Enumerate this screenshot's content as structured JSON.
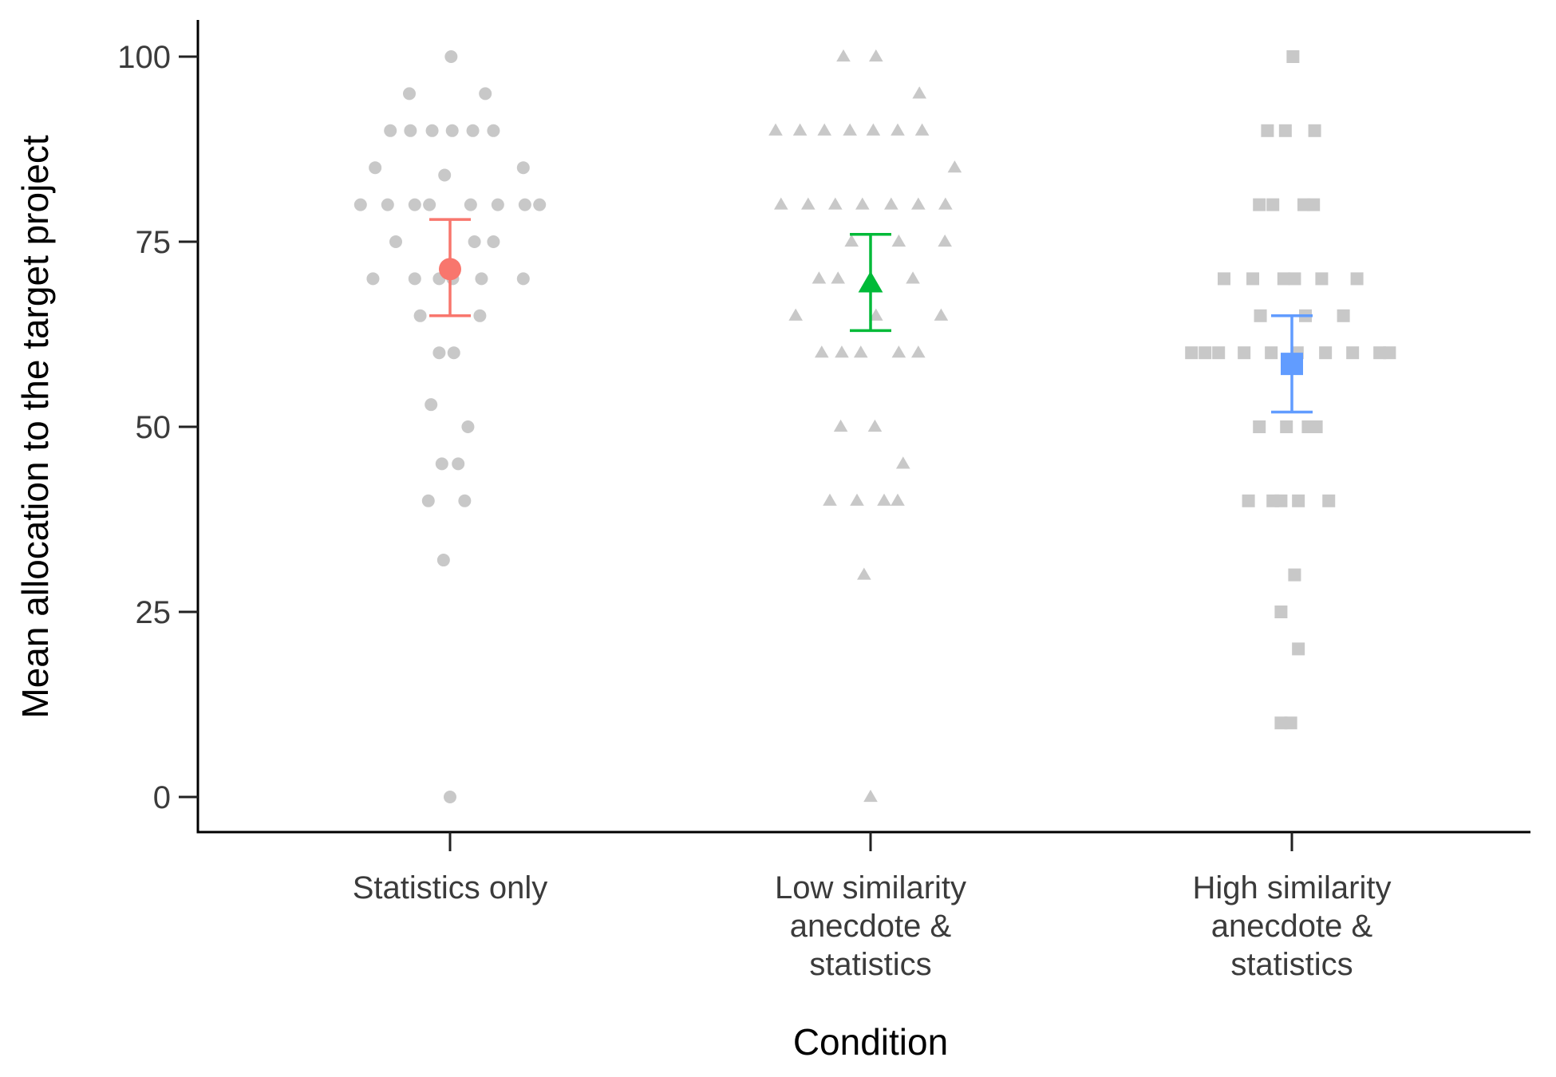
{
  "chart_data": {
    "type": "scatter",
    "title": "",
    "xlabel": "Condition",
    "ylabel": "Mean allocation to the target project",
    "ylim": [
      -5,
      105
    ],
    "yticks": [
      0,
      25,
      50,
      75,
      100
    ],
    "grid": false,
    "legend": "none",
    "categories": [
      [
        "Statistics only"
      ],
      [
        "Low similarity",
        "anecdote &",
        "statistics"
      ],
      [
        "High similarity",
        "anecdote &",
        "statistics"
      ]
    ],
    "series": [
      {
        "category": 0,
        "marker": "circle",
        "mean_color": "#F8766D",
        "points_color": "#c8c8c8",
        "mean": 71.3,
        "ci": [
          65,
          78
        ],
        "points": [
          [
            0.02,
            100
          ],
          [
            -0.75,
            95
          ],
          [
            0.65,
            95
          ],
          [
            -1.1,
            90
          ],
          [
            -0.73,
            90
          ],
          [
            -0.33,
            90
          ],
          [
            0.04,
            90
          ],
          [
            0.42,
            90
          ],
          [
            0.8,
            90
          ],
          [
            -1.38,
            85
          ],
          [
            1.35,
            85
          ],
          [
            -0.1,
            84
          ],
          [
            -1.65,
            80
          ],
          [
            -1.15,
            80
          ],
          [
            -0.65,
            80
          ],
          [
            -0.38,
            80
          ],
          [
            0.38,
            80
          ],
          [
            0.88,
            80
          ],
          [
            1.38,
            80
          ],
          [
            1.65,
            80
          ],
          [
            -1.0,
            75
          ],
          [
            0.45,
            75
          ],
          [
            0.8,
            75
          ],
          [
            -1.42,
            70
          ],
          [
            -0.65,
            70
          ],
          [
            -0.2,
            70
          ],
          [
            0.05,
            70
          ],
          [
            0.58,
            70
          ],
          [
            1.35,
            70
          ],
          [
            -0.55,
            65
          ],
          [
            0.55,
            65
          ],
          [
            -0.2,
            60
          ],
          [
            0.07,
            60
          ],
          [
            -0.35,
            53
          ],
          [
            0.33,
            50
          ],
          [
            -0.15,
            45
          ],
          [
            0.15,
            45
          ],
          [
            -0.4,
            40
          ],
          [
            0.27,
            40
          ],
          [
            -0.12,
            32
          ],
          [
            0,
            0
          ]
        ]
      },
      {
        "category": 1,
        "marker": "triangle",
        "mean_color": "#00BA38",
        "points_color": "#c8c8c8",
        "mean": 69.3,
        "ci": [
          63,
          76
        ],
        "points": [
          [
            -0.5,
            100
          ],
          [
            0.1,
            100
          ],
          [
            0.9,
            95
          ],
          [
            -1.75,
            90
          ],
          [
            -1.3,
            90
          ],
          [
            -0.85,
            90
          ],
          [
            -0.38,
            90
          ],
          [
            0.05,
            90
          ],
          [
            0.5,
            90
          ],
          [
            0.95,
            90
          ],
          [
            1.55,
            85
          ],
          [
            -1.65,
            80
          ],
          [
            -1.15,
            80
          ],
          [
            -0.65,
            80
          ],
          [
            -0.15,
            80
          ],
          [
            0.38,
            80
          ],
          [
            0.88,
            80
          ],
          [
            1.38,
            80
          ],
          [
            -0.35,
            75
          ],
          [
            0.52,
            75
          ],
          [
            1.37,
            75
          ],
          [
            -0.95,
            70
          ],
          [
            -0.6,
            70
          ],
          [
            0.78,
            70
          ],
          [
            -1.38,
            65
          ],
          [
            0.1,
            65
          ],
          [
            1.3,
            65
          ],
          [
            -0.9,
            60
          ],
          [
            -0.53,
            60
          ],
          [
            -0.18,
            60
          ],
          [
            0.52,
            60
          ],
          [
            0.88,
            60
          ],
          [
            -0.55,
            50
          ],
          [
            0.08,
            50
          ],
          [
            0.6,
            45
          ],
          [
            -0.75,
            40
          ],
          [
            -0.25,
            40
          ],
          [
            0.25,
            40
          ],
          [
            0.5,
            40
          ],
          [
            -0.12,
            30
          ],
          [
            0,
            0
          ]
        ]
      },
      {
        "category": 2,
        "marker": "square",
        "mean_color": "#619CFF",
        "points_color": "#c8c8c8",
        "mean": 58.5,
        "ci": [
          52,
          65
        ],
        "points": [
          [
            0.02,
            100
          ],
          [
            -0.45,
            90
          ],
          [
            -0.12,
            90
          ],
          [
            0.42,
            90
          ],
          [
            -0.6,
            80
          ],
          [
            -0.35,
            80
          ],
          [
            0.22,
            80
          ],
          [
            0.4,
            80
          ],
          [
            -1.25,
            70
          ],
          [
            -0.72,
            70
          ],
          [
            -0.15,
            70
          ],
          [
            0.05,
            70
          ],
          [
            0.55,
            70
          ],
          [
            1.2,
            70
          ],
          [
            -0.58,
            65
          ],
          [
            0.25,
            65
          ],
          [
            0.95,
            65
          ],
          [
            -1.85,
            60
          ],
          [
            -1.6,
            60
          ],
          [
            -1.35,
            60
          ],
          [
            -0.88,
            60
          ],
          [
            -0.38,
            60
          ],
          [
            0.1,
            60
          ],
          [
            0.62,
            60
          ],
          [
            1.12,
            60
          ],
          [
            1.62,
            60
          ],
          [
            1.8,
            60
          ],
          [
            -0.6,
            50
          ],
          [
            -0.1,
            50
          ],
          [
            0.3,
            50
          ],
          [
            0.45,
            50
          ],
          [
            -0.8,
            40
          ],
          [
            -0.35,
            40
          ],
          [
            -0.2,
            40
          ],
          [
            0.12,
            40
          ],
          [
            0.68,
            40
          ],
          [
            0.05,
            30
          ],
          [
            -0.2,
            25
          ],
          [
            0.12,
            20
          ],
          [
            -0.2,
            10
          ],
          [
            -0.02,
            10
          ]
        ]
      }
    ]
  }
}
